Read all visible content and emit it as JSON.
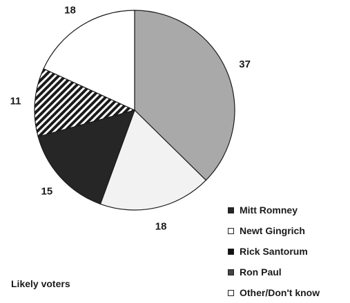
{
  "chart_data": {
    "type": "pie",
    "categories": [
      "Mitt Romney",
      "Newt Gingrich",
      "Rick Santorum",
      "Ron Paul",
      "Other/Don't know"
    ],
    "values": [
      37,
      18,
      15,
      11,
      18
    ],
    "value_labels": [
      "37",
      "18",
      "15",
      "11",
      "18"
    ],
    "colors": [
      "#a9a9a9",
      "#f2f2f2",
      "#262626",
      "hatched",
      "#ffffff"
    ],
    "start_angle_deg": 0,
    "direction": "clockwise",
    "legend_position": "bottom-right"
  },
  "legend": {
    "items": [
      {
        "label": "Mitt Romney",
        "color": "#262626"
      },
      {
        "label": "Newt Gingrich",
        "color": "#ffffff"
      },
      {
        "label": "Rick Santorum",
        "color": "#111111"
      },
      {
        "label": "Ron Paul",
        "color": "#444444"
      },
      {
        "label": "Other/Don't know",
        "color": "#ffffff"
      }
    ]
  },
  "footnote": "Likely voters"
}
